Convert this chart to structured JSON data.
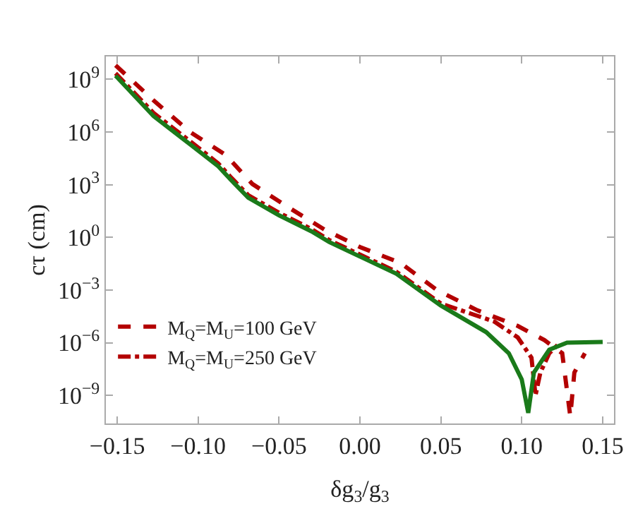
{
  "chart_data": {
    "type": "line",
    "xlabel": "δg$_{3}$/g$_{3}$",
    "ylabel": "cτ (cm)",
    "log": "y",
    "legend": "bottom left",
    "marker": "none",
    "xlim": [
      -0.157,
      0.157
    ],
    "xticks": [
      {
        "value": -0.15,
        "label": "−0.15"
      },
      {
        "value": -0.1,
        "label": "−0.10"
      },
      {
        "value": -0.05,
        "label": "−0.05"
      },
      {
        "value": 0,
        "label": "0.00"
      },
      {
        "value": 0.05,
        "label": "0.05"
      },
      {
        "value": 0.1,
        "label": "0.10"
      },
      {
        "value": 0.15,
        "label": "0.15"
      }
    ],
    "ylim": [
      2.5e-11,
      20000000000.0
    ],
    "yticks": [
      {
        "value": 1000000000.0,
        "label": "10$^{9}$"
      },
      {
        "value": 1000000.0,
        "label": "10$^{6}$"
      },
      {
        "value": 1000.0,
        "label": "10$^{3}$"
      },
      {
        "value": 1,
        "label": "10$^{0}$"
      },
      {
        "value": 0.001,
        "label": "10$^{−3}$"
      },
      {
        "value": 1e-06,
        "label": "10$^{−6}$"
      },
      {
        "value": 1e-09,
        "label": "10$^{−9}$"
      }
    ],
    "series": [
      {
        "name": "M$_{Q}$=M$_{U}$=100 GeV",
        "color": "#b30000",
        "line_style": "dashed",
        "x": [
          -0.151,
          -0.1275,
          -0.105,
          -0.083,
          -0.0665,
          -0.044,
          -0.022,
          0,
          0.025,
          0.0475,
          0.0725,
          0.0975,
          0.114,
          0.125,
          0.13,
          0.1325,
          0.139
        ],
        "values": [
          6300000000.0,
          63000000.0,
          1000000.0,
          50000.0,
          1100.0,
          50,
          2.8,
          0.28,
          0.035,
          0.001,
          7e-05,
          9e-06,
          1.4e-06,
          2.5e-07,
          6.3e-11,
          2e-08,
          2.5e-07
        ]
      },
      {
        "name": "M$_{Q}$=M$_{U}$=250 GeV",
        "color": "#b30000",
        "line_style": "dashdot",
        "x": [
          -0.151,
          -0.1275,
          -0.105,
          -0.0875,
          -0.08,
          -0.069,
          -0.05,
          -0.03,
          -0.019,
          0.0225,
          0.05,
          0.083,
          0.0975,
          0.106,
          0.1085,
          0.1115,
          0.117,
          0.1225
        ],
        "values": [
          2200000000.0,
          12000000.0,
          300000.0,
          16000.0,
          2800.0,
          250,
          25,
          3,
          0.7,
          0.011,
          0.00017,
          1.6e-05,
          2e-06,
          1.4e-07,
          1e-09,
          2e-08,
          2.5e-07,
          8e-07
        ]
      },
      {
        "color": "#1a7a1a",
        "line_style": "solid",
        "x": [
          -0.151,
          -0.1275,
          -0.105,
          -0.0875,
          -0.08,
          -0.069,
          -0.05,
          -0.03,
          -0.019,
          0.0225,
          0.05,
          0.078,
          0.092,
          0.1,
          0.104,
          0.1075,
          0.117,
          0.128,
          0.15
        ],
        "values": [
          1600000000.0,
          8000000.0,
          200000.0,
          11000.0,
          2000.0,
          180,
          18,
          2.2,
          0.54,
          0.0085,
          0.00013,
          4e-06,
          2.5e-07,
          8e-09,
          1e-10,
          2e-08,
          4e-07,
          1e-06,
          1.1e-06
        ]
      }
    ]
  }
}
